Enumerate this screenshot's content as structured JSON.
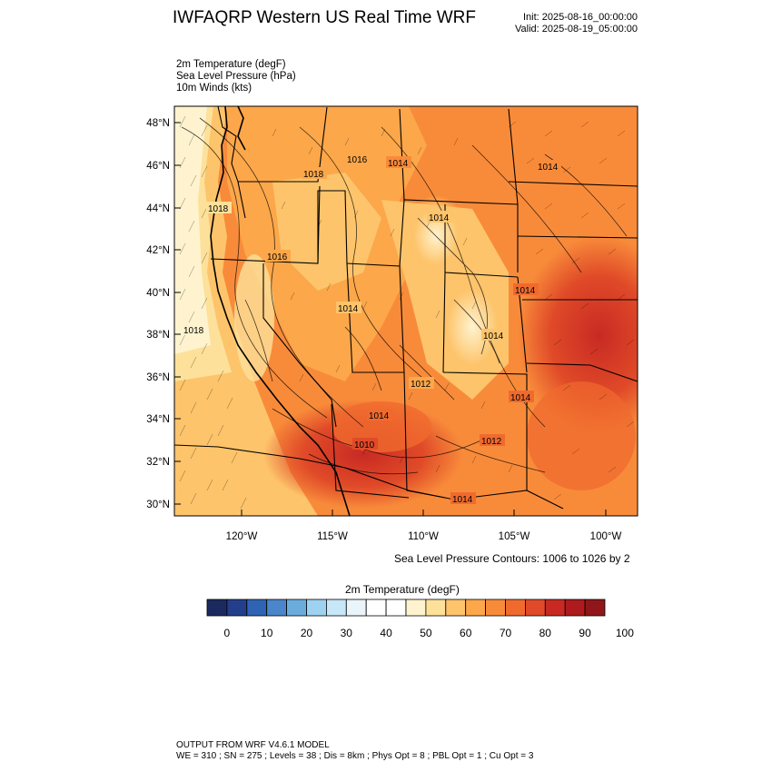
{
  "header": {
    "title": "IWFAQRP Western US Real Time WRF",
    "init": "Init: 2025-08-16_00:00:00",
    "valid": "Valid: 2025-08-19_05:00:00"
  },
  "fields": [
    "2m Temperature   (degF)",
    "Sea Level Pressure   (hPa)",
    "10m Winds   (kts)"
  ],
  "map": {
    "lat_labels": [
      "48°N",
      "46°N",
      "44°N",
      "42°N",
      "40°N",
      "38°N",
      "36°N",
      "34°N",
      "32°N",
      "30°N"
    ],
    "lon_labels": [
      "120°W",
      "115°W",
      "110°W",
      "105°W",
      "100°W"
    ],
    "contour_note": "Sea Level Pressure Contours: 1006 to 1026 by 2",
    "isobar_labels": [
      "1018",
      "1018",
      "1018",
      "1016",
      "1014",
      "1016",
      "1014",
      "1014",
      "1014",
      "1014",
      "1014",
      "1014",
      "1012",
      "1010",
      "1014",
      "1012",
      "1014"
    ]
  },
  "colorbar": {
    "title": "2m Temperature  (degF)",
    "tick_labels": [
      "0",
      "10",
      "20",
      "30",
      "40",
      "50",
      "60",
      "70",
      "80",
      "90",
      "100"
    ],
    "colors": [
      "#1b2a5e",
      "#233f8c",
      "#2f63b4",
      "#4a86c9",
      "#6aaddc",
      "#9dd2f0",
      "#c7e6f7",
      "#eaf5fb",
      "#ffffff",
      "#ffffff",
      "#fff3cf",
      "#fde19a",
      "#fdc46b",
      "#fca74a",
      "#f88b3a",
      "#f06a2e",
      "#e04a28",
      "#c82a23",
      "#ad1b1f",
      "#8f1719"
    ]
  },
  "footer": {
    "line1": "OUTPUT FROM WRF V4.6.1 MODEL",
    "line2": "WE = 310 ; SN = 275 ; Levels = 38 ; Dis = 8km ; Phys Opt = 8 ; PBL Opt = 1 ; Cu Opt = 3"
  }
}
